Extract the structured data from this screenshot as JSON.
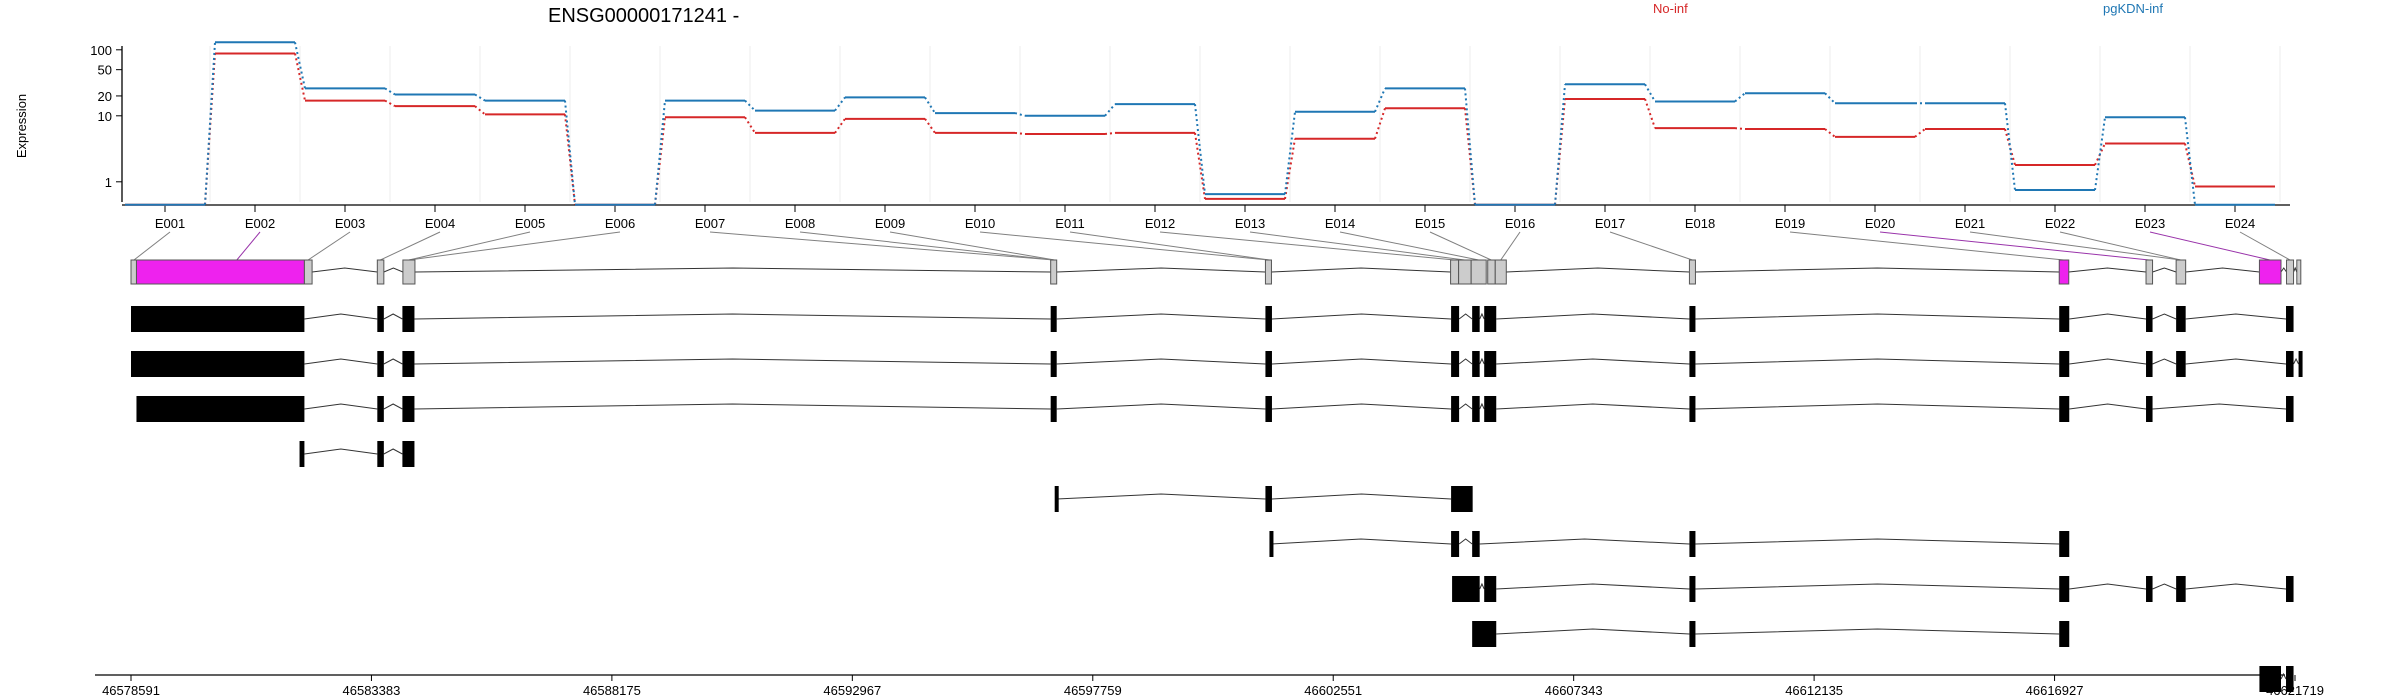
{
  "chart_data": {
    "type": "line",
    "title": "ENSG00000171241 -",
    "ylabel": "Expression",
    "yscale": "log",
    "ylim": [
      0.4,
      180
    ],
    "yticks": [
      {
        "v": 1,
        "label": "1"
      },
      {
        "v": 10,
        "label": "10"
      },
      {
        "v": 20,
        "label": "20"
      },
      {
        "v": 50,
        "label": "50"
      },
      {
        "v": 100,
        "label": "100"
      }
    ],
    "categories": [
      "E001",
      "E002",
      "E003",
      "E004",
      "E005",
      "E006",
      "E007",
      "E008",
      "E009",
      "E010",
      "E011",
      "E012",
      "E013",
      "E014",
      "E015",
      "E016",
      "E017",
      "E018",
      "E019",
      "E020",
      "E021",
      "E022",
      "E023",
      "E024"
    ],
    "series": [
      {
        "name": "No-inf",
        "color": "#d62728",
        "values": [
          0.45,
          88,
          17,
          14,
          10.5,
          0.45,
          9.5,
          5.5,
          9,
          5.5,
          5.3,
          5.5,
          0.55,
          4.5,
          13,
          0.45,
          18,
          6.5,
          6.3,
          4.8,
          6.3,
          1.8,
          3.8,
          0.85
        ]
      },
      {
        "name": "pgKDN-inf",
        "color": "#1f77b4",
        "values": [
          0.45,
          130,
          26,
          21,
          17,
          0.45,
          17,
          12,
          19,
          11,
          10,
          15,
          0.65,
          11.5,
          26,
          0.45,
          30,
          16.5,
          22,
          15.5,
          15.5,
          0.75,
          9.5,
          0.45
        ]
      }
    ],
    "exon_highlight_color": "#ee22ee",
    "exon_line_color": "#808080",
    "highlighted_exons": [
      "E002",
      "E020",
      "E023"
    ],
    "genomic_ticks": [
      "46578591",
      "46583383",
      "46588175",
      "46592967",
      "46597759",
      "46602551",
      "46607343",
      "46612135",
      "46616927",
      "46621719"
    ],
    "gene_model": [
      {
        "s": 46578591,
        "e": 46578700,
        "hl": false
      },
      {
        "s": 46578700,
        "e": 46582047,
        "hl": true
      },
      {
        "s": 46582047,
        "e": 46582200,
        "hl": false
      },
      {
        "s": 46583500,
        "e": 46583630,
        "hl": false
      },
      {
        "s": 46584010,
        "e": 46584250,
        "hl": false
      },
      {
        "s": 46596920,
        "e": 46597040,
        "hl": false
      },
      {
        "s": 46601200,
        "e": 46601320,
        "hl": false
      },
      {
        "s": 46604890,
        "e": 46605050,
        "hl": false
      },
      {
        "s": 46605050,
        "e": 46605300,
        "hl": false
      },
      {
        "s": 46605300,
        "e": 46605600,
        "hl": false
      },
      {
        "s": 46605630,
        "e": 46605780,
        "hl": false
      },
      {
        "s": 46605780,
        "e": 46606000,
        "hl": false
      },
      {
        "s": 46609650,
        "e": 46609770,
        "hl": false
      },
      {
        "s": 46617020,
        "e": 46617210,
        "hl": true
      },
      {
        "s": 46618750,
        "e": 46618880,
        "hl": false
      },
      {
        "s": 46619350,
        "e": 46619540,
        "hl": false
      },
      {
        "s": 46621010,
        "e": 46621440,
        "hl": true
      },
      {
        "s": 46621550,
        "e": 46621690,
        "hl": false
      },
      {
        "s": 46621755,
        "e": 46621820,
        "hl": false
      }
    ],
    "exon_mapping": [
      {
        "from": 46578650,
        "to": "E001"
      },
      {
        "from": 46580700,
        "to": "E002"
      },
      {
        "from": 46582120,
        "to": "E003"
      },
      {
        "from": 46583560,
        "to": "E004"
      },
      {
        "from": 46584130,
        "to": "E005"
      },
      {
        "from": 46584130,
        "to": "E006"
      },
      {
        "from": 46596980,
        "to": "E007"
      },
      {
        "from": 46596980,
        "to": "E008"
      },
      {
        "from": 46597000,
        "to": "E009"
      },
      {
        "from": 46601260,
        "to": "E010"
      },
      {
        "from": 46601280,
        "to": "E011"
      },
      {
        "from": 46604970,
        "to": "E012"
      },
      {
        "from": 46605170,
        "to": "E013"
      },
      {
        "from": 46605450,
        "to": "E014"
      },
      {
        "from": 46605700,
        "to": "E015"
      },
      {
        "from": 46605890,
        "to": "E016"
      },
      {
        "from": 46609710,
        "to": "E017"
      },
      {
        "from": 46617110,
        "to": "E019"
      },
      {
        "from": 46618810,
        "to": "E020"
      },
      {
        "from": 46619440,
        "to": "E021"
      },
      {
        "from": 46619440,
        "to": "E022"
      },
      {
        "from": 46621220,
        "to": "E023"
      },
      {
        "from": 46621620,
        "to": "E024"
      }
    ],
    "transcripts": [
      {
        "exons": [
          [
            46578591,
            46582047
          ],
          [
            46583500,
            46583630
          ],
          [
            46584000,
            46584240
          ],
          [
            46596920,
            46597040
          ],
          [
            46601200,
            46601330
          ],
          [
            46604900,
            46605060
          ],
          [
            46605320,
            46605470
          ],
          [
            46605560,
            46605800
          ],
          [
            46609650,
            46609770
          ],
          [
            46617020,
            46617220
          ],
          [
            46618750,
            46618880
          ],
          [
            46619350,
            46619540
          ],
          [
            46621540,
            46621690
          ]
        ]
      },
      {
        "exons": [
          [
            46578591,
            46582047
          ],
          [
            46583500,
            46583630
          ],
          [
            46584000,
            46584240
          ],
          [
            46596920,
            46597040
          ],
          [
            46601200,
            46601330
          ],
          [
            46604900,
            46605060
          ],
          [
            46605320,
            46605470
          ],
          [
            46605560,
            46605800
          ],
          [
            46609650,
            46609770
          ],
          [
            46617020,
            46617220
          ],
          [
            46618750,
            46618880
          ],
          [
            46619350,
            46619540
          ],
          [
            46621540,
            46621690
          ],
          [
            46621790,
            46621830
          ]
        ]
      },
      {
        "exons": [
          [
            46578700,
            46582047
          ],
          [
            46583500,
            46583630
          ],
          [
            46584000,
            46584240
          ],
          [
            46596920,
            46597040
          ],
          [
            46601200,
            46601330
          ],
          [
            46604900,
            46605060
          ],
          [
            46605320,
            46605470
          ],
          [
            46605560,
            46605800
          ],
          [
            46609650,
            46609770
          ],
          [
            46617020,
            46617220
          ],
          [
            46618750,
            46618880
          ],
          [
            46621540,
            46621690
          ]
        ]
      },
      {
        "exons": [
          [
            46581950,
            46582047
          ],
          [
            46583500,
            46583630
          ],
          [
            46584000,
            46584240
          ]
        ]
      },
      {
        "exons": [
          [
            46597000,
            46597040
          ],
          [
            46601200,
            46601330
          ],
          [
            46604900,
            46605330
          ]
        ]
      },
      {
        "exons": [
          [
            46601280,
            46601310
          ],
          [
            46604900,
            46605060
          ],
          [
            46605320,
            46605470
          ],
          [
            46609650,
            46609770
          ],
          [
            46617020,
            46617220
          ]
        ]
      },
      {
        "exons": [
          [
            46604920,
            46605470
          ],
          [
            46605560,
            46605800
          ],
          [
            46609650,
            46609770
          ],
          [
            46617020,
            46617220
          ],
          [
            46618750,
            46618880
          ],
          [
            46619350,
            46619540
          ],
          [
            46621540,
            46621690
          ]
        ]
      },
      {
        "exons": [
          [
            46605320,
            46605800
          ],
          [
            46609650,
            46609770
          ],
          [
            46617020,
            46617220
          ]
        ]
      },
      {
        "exons": [
          [
            46621010,
            46621440
          ],
          [
            46621540,
            46621690
          ]
        ]
      }
    ]
  }
}
